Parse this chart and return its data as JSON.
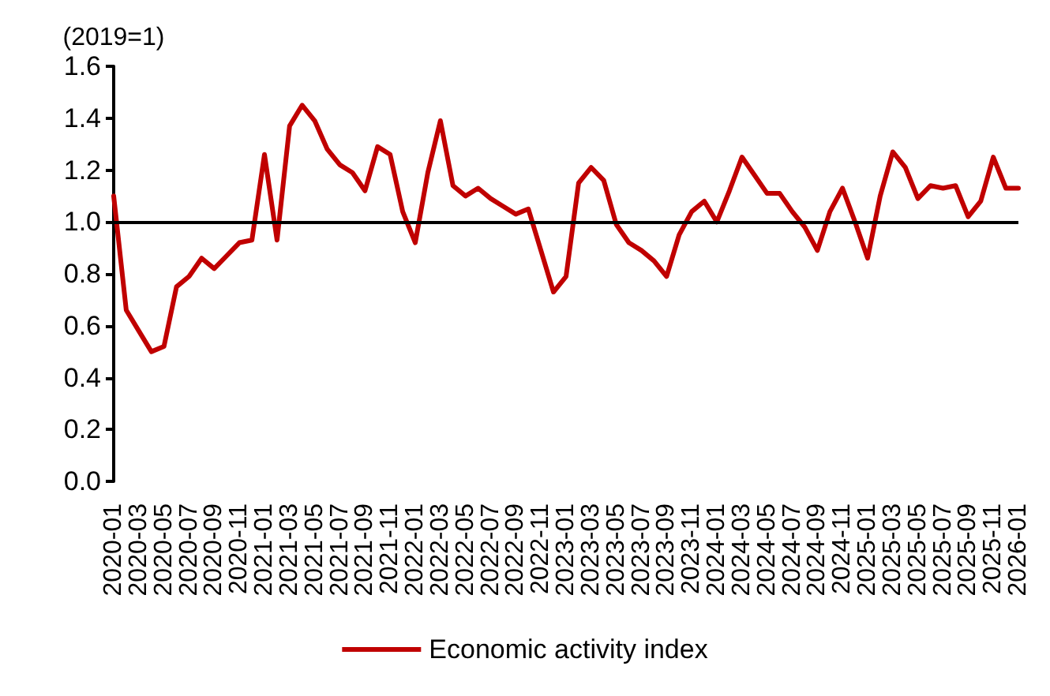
{
  "chart_data": {
    "type": "line",
    "ylabel": "(2019=1)",
    "categories": [
      "2020-01",
      null,
      "2020-03",
      null,
      "2020-05",
      null,
      "2020-07",
      null,
      "2020-09",
      null,
      "2020-11",
      null,
      "2021-01",
      null,
      "2021-03",
      null,
      "2021-05",
      null,
      "2021-07",
      null,
      "2021-09",
      null,
      "2021-11",
      null,
      "2022-01",
      null,
      "2022-03",
      null,
      "2022-05",
      null,
      "2022-07",
      null,
      "2022-09",
      null,
      "2022-11",
      null,
      "2023-01",
      null,
      "2023-03",
      null,
      "2023-05",
      null,
      "2023-07",
      null,
      "2023-09",
      null,
      "2023-11",
      null,
      "2024-01",
      null,
      "2024-03",
      null,
      "2024-05",
      null,
      "2024-07",
      null,
      "2024-09",
      null,
      "2024-11",
      null,
      "2025-01",
      null,
      "2025-03",
      null,
      "2025-05",
      null,
      "2025-07",
      null,
      "2025-09",
      null,
      "2025-11",
      null,
      "2026-01"
    ],
    "series": [
      {
        "name": "Economic activity index",
        "color": "#c00000",
        "values": [
          1.1,
          0.66,
          0.58,
          0.5,
          0.52,
          0.75,
          0.79,
          0.86,
          0.82,
          0.87,
          0.92,
          0.93,
          1.26,
          0.93,
          1.37,
          1.45,
          1.39,
          1.28,
          1.22,
          1.19,
          1.12,
          1.29,
          1.26,
          1.04,
          0.92,
          1.19,
          1.39,
          1.14,
          1.1,
          1.13,
          1.09,
          1.06,
          1.03,
          1.05,
          0.89,
          0.73,
          0.79,
          1.15,
          1.21,
          1.16,
          0.99,
          0.92,
          0.89,
          0.85,
          0.79,
          0.95,
          1.04,
          1.08,
          1.0,
          1.12,
          1.25,
          1.18,
          1.11,
          1.11,
          1.04,
          0.98,
          0.89,
          1.04,
          1.13,
          1.0,
          0.86,
          1.1,
          1.27,
          1.21,
          1.09,
          1.14,
          1.13,
          1.14,
          1.02,
          1.08,
          1.25,
          1.13,
          1.13
        ]
      }
    ],
    "ylim": [
      0,
      1.6
    ],
    "yticks": [
      {
        "value": 0,
        "label": "0.0"
      },
      {
        "value": 0.2,
        "label": "0.2"
      },
      {
        "value": 0.4,
        "label": "0.4"
      },
      {
        "value": 0.6,
        "label": "0.6"
      },
      {
        "value": 0.8,
        "label": "0.8"
      },
      {
        "value": 1,
        "label": "1.0"
      },
      {
        "value": 1.2,
        "label": "1.2"
      },
      {
        "value": 1.4,
        "label": "1.4"
      },
      {
        "value": 1.6,
        "label": "1.6"
      }
    ],
    "ref_lines": [
      {
        "axis": "y",
        "value": 1,
        "color": "#000000"
      }
    ],
    "grid": false,
    "legend": "bottom",
    "marker": "none",
    "line_style": "solid"
  }
}
